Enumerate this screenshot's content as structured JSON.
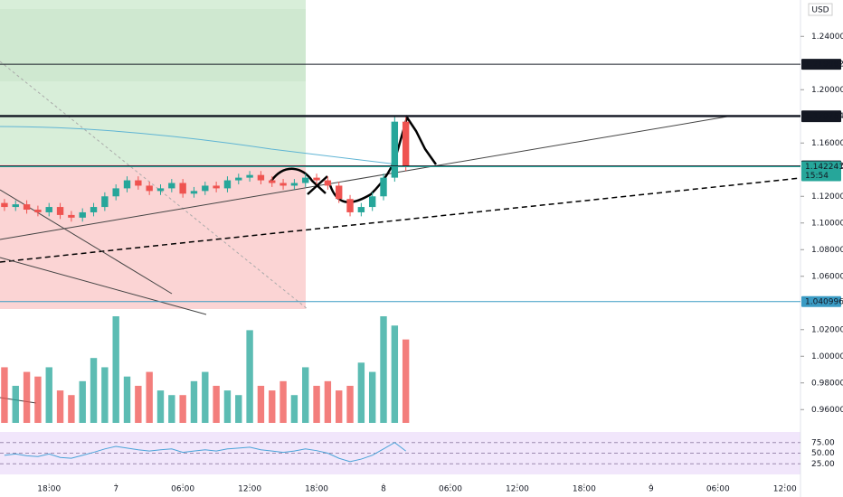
{
  "chart_data": {
    "type": "candlestick",
    "currency": "USD",
    "countdown": "15:54",
    "x": [
      -10,
      -9,
      -8,
      -7,
      -6,
      -5,
      -4,
      -3,
      -2,
      -1,
      0,
      1,
      2,
      3,
      4,
      5,
      6,
      7,
      8,
      9,
      10,
      11,
      12,
      13,
      14,
      15,
      16,
      17,
      18,
      19,
      20,
      21,
      22,
      23,
      24,
      25,
      26
    ],
    "open": [
      1.115,
      1.112,
      1.114,
      1.11,
      1.108,
      1.112,
      1.106,
      1.104,
      1.108,
      1.112,
      1.12,
      1.126,
      1.132,
      1.128,
      1.124,
      1.126,
      1.13,
      1.122,
      1.124,
      1.128,
      1.126,
      1.132,
      1.134,
      1.136,
      1.132,
      1.13,
      1.128,
      1.13,
      1.134,
      1.132,
      1.128,
      1.118,
      1.108,
      1.112,
      1.12,
      1.134,
      1.176
    ],
    "high": [
      1.118,
      1.117,
      1.117,
      1.113,
      1.115,
      1.115,
      1.109,
      1.111,
      1.115,
      1.123,
      1.129,
      1.135,
      1.135,
      1.131,
      1.129,
      1.133,
      1.133,
      1.127,
      1.131,
      1.131,
      1.135,
      1.137,
      1.139,
      1.139,
      1.135,
      1.133,
      1.133,
      1.137,
      1.137,
      1.135,
      1.131,
      1.121,
      1.115,
      1.123,
      1.137,
      1.18,
      1.18
    ],
    "low": [
      1.109,
      1.109,
      1.107,
      1.105,
      1.105,
      1.103,
      1.101,
      1.101,
      1.105,
      1.109,
      1.117,
      1.123,
      1.125,
      1.121,
      1.121,
      1.123,
      1.119,
      1.119,
      1.121,
      1.123,
      1.123,
      1.129,
      1.131,
      1.129,
      1.127,
      1.125,
      1.125,
      1.127,
      1.129,
      1.125,
      1.115,
      1.105,
      1.105,
      1.109,
      1.117,
      1.131,
      1.139
    ],
    "close": [
      1.112,
      1.114,
      1.11,
      1.108,
      1.112,
      1.106,
      1.104,
      1.108,
      1.112,
      1.12,
      1.126,
      1.132,
      1.128,
      1.124,
      1.126,
      1.13,
      1.122,
      1.124,
      1.128,
      1.126,
      1.132,
      1.134,
      1.136,
      1.132,
      1.13,
      1.128,
      1.13,
      1.134,
      1.132,
      1.128,
      1.118,
      1.108,
      1.112,
      1.12,
      1.134,
      1.176,
      1.142
    ],
    "volume": [
      60,
      40,
      55,
      50,
      60,
      35,
      30,
      45,
      70,
      60,
      115,
      50,
      40,
      55,
      35,
      30,
      30,
      45,
      55,
      40,
      35,
      30,
      100,
      40,
      35,
      45,
      30,
      60,
      40,
      45,
      35,
      40,
      65,
      55,
      115,
      105,
      90
    ],
    "rsi": [
      45,
      48,
      44,
      42,
      48,
      40,
      38,
      45,
      52,
      60,
      66,
      62,
      58,
      55,
      58,
      60,
      52,
      55,
      58,
      55,
      60,
      62,
      64,
      58,
      55,
      52,
      55,
      60,
      56,
      50,
      38,
      30,
      36,
      45,
      60,
      75,
      55
    ],
    "up_color": "#26a69a",
    "down_color": "#ef5350",
    "xlim": [
      -10.4,
      61.4
    ],
    "xticks": [
      {
        "value": -6,
        "label": "18:00"
      },
      {
        "value": 0,
        "label": "7"
      },
      {
        "value": 6,
        "label": "06:00"
      },
      {
        "value": 12,
        "label": "12:00"
      },
      {
        "value": 18,
        "label": "18:00"
      },
      {
        "value": 24,
        "label": "8"
      },
      {
        "value": 30,
        "label": "06:00"
      },
      {
        "value": 36,
        "label": "12:00"
      },
      {
        "value": 42,
        "label": "18:00"
      },
      {
        "value": 48,
        "label": "9"
      },
      {
        "value": 54,
        "label": "06:00"
      },
      {
        "value": 60,
        "label": "12:00"
      }
    ],
    "ylim": [
      0.95,
      1.2673
    ],
    "yticks": [
      {
        "value": 1.24,
        "label": "1.240000"
      },
      {
        "value": 1.2,
        "label": "1.200000"
      },
      {
        "value": 1.16,
        "label": "1.160000"
      },
      {
        "value": 1.12,
        "label": "1.120000"
      },
      {
        "value": 1.1,
        "label": "1.100000"
      },
      {
        "value": 1.08,
        "label": "1.080000"
      },
      {
        "value": 1.06,
        "label": "1.060000"
      },
      {
        "value": 1.02,
        "label": "1.020000"
      },
      {
        "value": 1.0,
        "label": "1.000000"
      },
      {
        "value": 0.98,
        "label": "0.980000"
      },
      {
        "value": 0.96,
        "label": "0.960000"
      }
    ],
    "rsi_ylim": [
      0,
      100
    ],
    "rsi_ticks": [
      {
        "value": 75,
        "label": "75.00"
      },
      {
        "value": 50,
        "label": "50.00"
      },
      {
        "value": 25,
        "label": "25.00"
      }
    ],
    "price_lines": [
      {
        "value": 1.219082,
        "color": "#131722"
      },
      {
        "value": 1.180314,
        "color": "#131722"
      },
      {
        "value": 1.17976,
        "color": "#131722"
      },
      {
        "value": 1.142772,
        "color": "#131722"
      },
      {
        "value": 1.142241,
        "color": "#26a69a"
      },
      {
        "value": 1.040996,
        "color": "#3a9bc4"
      }
    ]
  }
}
